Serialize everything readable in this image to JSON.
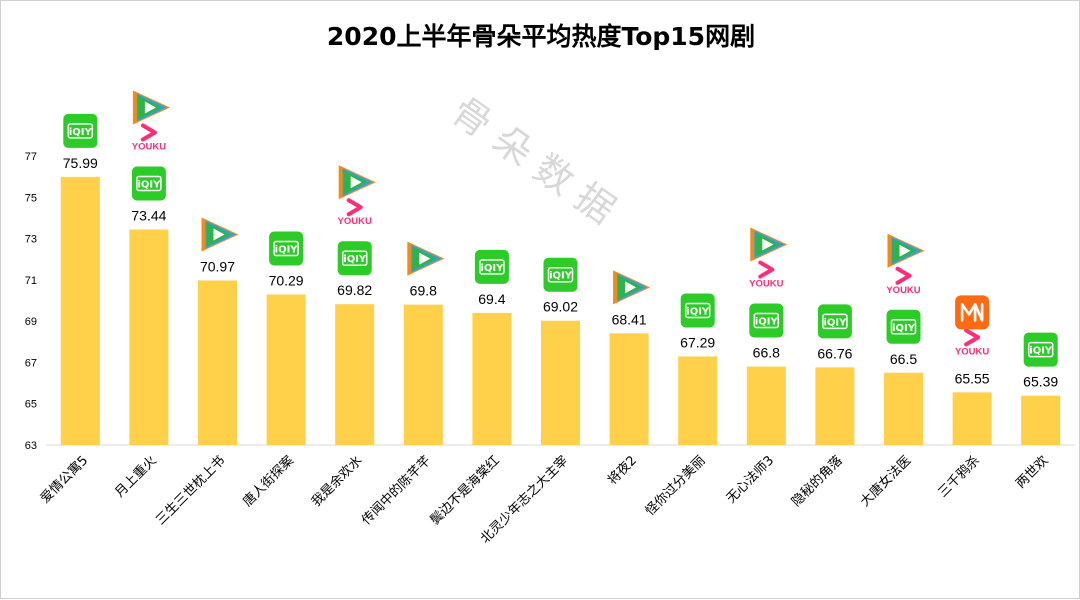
{
  "watermark": "骨 朵 数 据",
  "colors": {
    "bar": "#ffd04a",
    "iqiyi": "#2ccb28",
    "tencent_green": "#2fb24a",
    "tencent_orange": "#f08a1c",
    "tencent_blue": "#2aa3e6",
    "youku": "#ff2d78",
    "mgtv": "#ff6a13"
  },
  "platform_logos": {
    "iqiyi": "iQIY",
    "youku": "YOUKU"
  },
  "chart_data": {
    "type": "bar",
    "title": "2020上半年骨朵平均热度Top15网剧",
    "xlabel": "",
    "ylabel": "",
    "ylim": [
      63,
      77
    ],
    "yticks": [
      63,
      65,
      67,
      69,
      71,
      73,
      75,
      77
    ],
    "grid": false,
    "categories": [
      "爱情公寓5",
      "月上重火",
      "三生三世枕上书",
      "唐人街探案",
      "我是余欢水",
      "传闻中的陈芊芊",
      "鬓边不是海棠红",
      "北灵少年志之大主宰",
      "将夜2",
      "怪你过分美丽",
      "无心法师3",
      "隐秘的角落",
      "大唐女法医",
      "三千鸦杀",
      "两世欢"
    ],
    "values": [
      75.99,
      73.44,
      70.97,
      70.29,
      69.82,
      69.8,
      69.4,
      69.02,
      68.41,
      67.29,
      66.8,
      66.76,
      66.5,
      65.55,
      65.39
    ],
    "value_labels": [
      "75.99",
      "73.44",
      "70.97",
      "70.29",
      "69.82",
      "69.8",
      "69.4",
      "69.02",
      "68.41",
      "67.29",
      "66.8",
      "66.76",
      "66.5",
      "65.55",
      "65.39"
    ],
    "platforms": [
      [
        "iqiyi"
      ],
      [
        "iqiyi",
        "youku",
        "tencent"
      ],
      [
        "tencent"
      ],
      [
        "iqiyi"
      ],
      [
        "iqiyi",
        "youku",
        "tencent"
      ],
      [
        "tencent"
      ],
      [
        "iqiyi"
      ],
      [
        "iqiyi"
      ],
      [
        "tencent"
      ],
      [
        "iqiyi"
      ],
      [
        "iqiyi",
        "youku",
        "tencent"
      ],
      [
        "iqiyi"
      ],
      [
        "iqiyi",
        "youku",
        "tencent"
      ],
      [
        "youku",
        "mgtv"
      ],
      [
        "iqiyi"
      ]
    ]
  }
}
